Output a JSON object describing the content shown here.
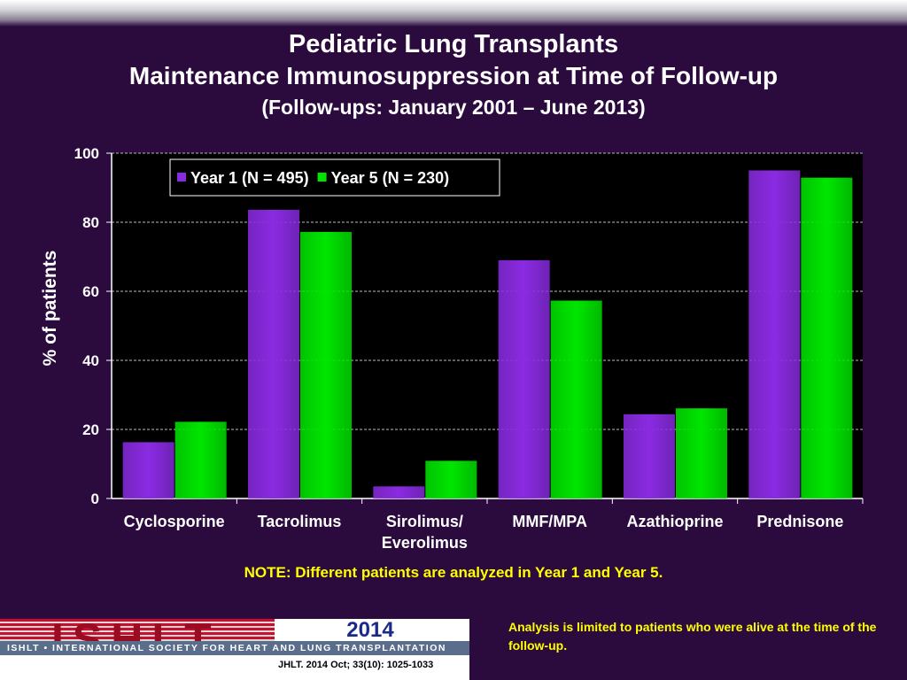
{
  "title": {
    "line1": "Pediatric Lung Transplants",
    "line2": "Maintenance Immunosuppression at Time of Follow-up",
    "line3": "(Follow-ups: January 2001 – June 2013)"
  },
  "note": "NOTE: Different patients are analyzed in Year 1 and Year 5.",
  "footer": {
    "logo_text": "ISHLT",
    "tagline": "ISHLT • INTERNATIONAL SOCIETY FOR HEART AND LUNG TRANSPLANTATION",
    "year": "2014",
    "citation": "JHLT. 2014 Oct; 33(10): 1025-1033",
    "analysis_note": "Analysis is limited to patients who were alive at the time of the follow-up."
  },
  "colors": {
    "background": "#2b0a3d",
    "plot_bg": "#000000",
    "year1": "#8a2be2",
    "year5": "#00e600",
    "accent_text": "#ffff00"
  },
  "chart_data": {
    "type": "bar",
    "ylabel": "% of patients",
    "xlabel": "",
    "ylim": [
      0,
      100
    ],
    "yticks": [
      0,
      20,
      40,
      60,
      80,
      100
    ],
    "grid": true,
    "legend_position": "top-left",
    "categories": [
      [
        "Cyclosporine"
      ],
      [
        "Tacrolimus"
      ],
      [
        "Sirolimus/",
        "Everolimus"
      ],
      [
        "MMF/MPA"
      ],
      [
        "Azathioprine"
      ],
      [
        "Prednisone"
      ]
    ],
    "series": [
      {
        "name": "Year 1 (N = 495)",
        "values": [
          16.3,
          83.6,
          3.5,
          69.0,
          24.4,
          95.0
        ]
      },
      {
        "name": "Year 5 (N = 230)",
        "values": [
          22.2,
          77.2,
          10.9,
          57.3,
          26.1,
          92.9
        ]
      }
    ]
  }
}
